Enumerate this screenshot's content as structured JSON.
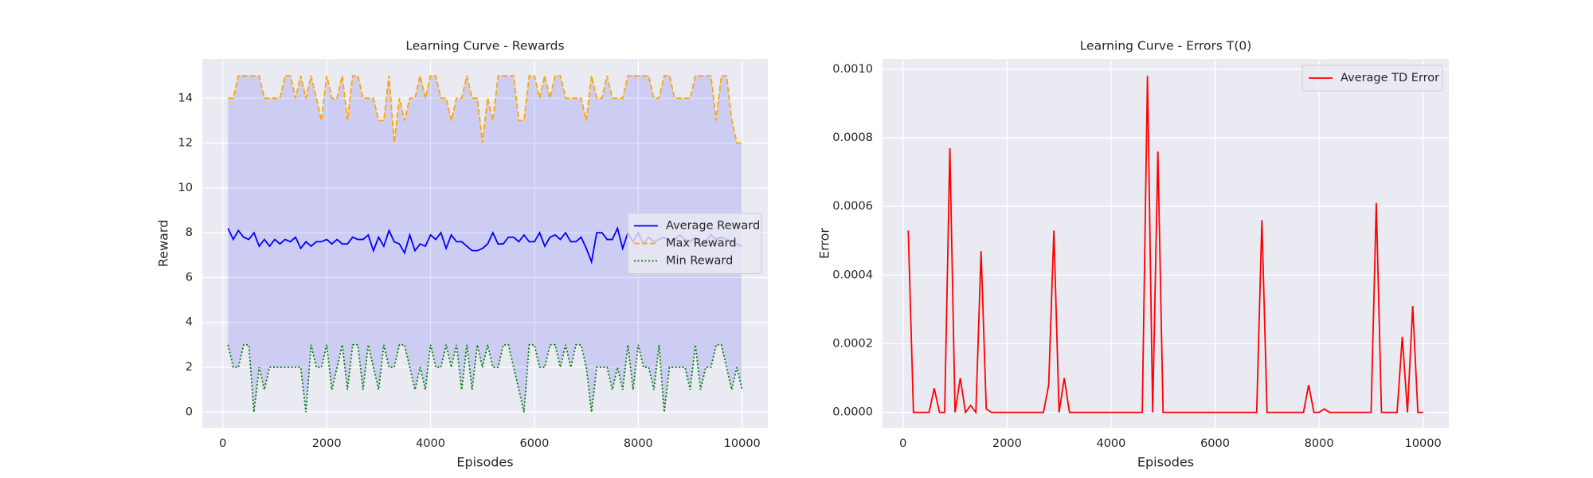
{
  "chart_data": [
    {
      "type": "line",
      "title": "Learning Curve - Rewards",
      "xlabel": "Episodes",
      "ylabel": "Reward",
      "x": [
        100,
        200,
        300,
        400,
        500,
        600,
        700,
        800,
        900,
        1000,
        1100,
        1200,
        1300,
        1400,
        1500,
        1600,
        1700,
        1800,
        1900,
        2000,
        2100,
        2200,
        2300,
        2400,
        2500,
        2600,
        2700,
        2800,
        2900,
        3000,
        3100,
        3200,
        3300,
        3400,
        3500,
        3600,
        3700,
        3800,
        3900,
        4000,
        4100,
        4200,
        4300,
        4400,
        4500,
        4600,
        4700,
        4800,
        4900,
        5000,
        5100,
        5200,
        5300,
        5400,
        5500,
        5600,
        5700,
        5800,
        5900,
        6000,
        6100,
        6200,
        6300,
        6400,
        6500,
        6600,
        6700,
        6800,
        6900,
        7000,
        7100,
        7200,
        7300,
        7400,
        7500,
        7600,
        7700,
        7800,
        7900,
        8000,
        8100,
        8200,
        8300,
        8400,
        8500,
        8600,
        8700,
        8800,
        8900,
        9000,
        9100,
        9200,
        9300,
        9400,
        9500,
        9600,
        9700,
        9800,
        9900,
        10000
      ],
      "series": [
        {
          "name": "Average Reward",
          "color": "#0000ff",
          "linestyle": "solid",
          "values": [
            8.2,
            7.7,
            8.1,
            7.8,
            7.7,
            8,
            7.4,
            7.7,
            7.4,
            7.7,
            7.5,
            7.7,
            7.6,
            7.8,
            7.3,
            7.6,
            7.4,
            7.6,
            7.6,
            7.7,
            7.5,
            7.7,
            7.5,
            7.5,
            7.8,
            7.7,
            7.7,
            7.9,
            7.2,
            7.8,
            7.4,
            8.1,
            7.6,
            7.5,
            7.1,
            7.9,
            7.2,
            7.5,
            7.4,
            7.9,
            7.7,
            8,
            7.3,
            7.9,
            7.6,
            7.6,
            7.4,
            7.2,
            7.2,
            7.3,
            7.5,
            8,
            7.5,
            7.5,
            7.8,
            7.8,
            7.6,
            7.9,
            7.6,
            7.6,
            8,
            7.4,
            7.8,
            7.9,
            7.7,
            8,
            7.6,
            7.6,
            7.8,
            7.3,
            6.7,
            8,
            8,
            7.7,
            7.7,
            8.2,
            7.3,
            8,
            7.6,
            8,
            7.5,
            7.8,
            7.6,
            7.7,
            7.8,
            7.6,
            7.7,
            7.9,
            7.7,
            7.6,
            7.8,
            7.5,
            7.6,
            7.9,
            7.7,
            7.8,
            7.7,
            7.6,
            7.5,
            7.4
          ]
        },
        {
          "name": "Max Reward",
          "color": "#ffa500",
          "linestyle": "dashed",
          "values": [
            14,
            14,
            15,
            15,
            15,
            15,
            15,
            14,
            14,
            14,
            14,
            15,
            15,
            14,
            15,
            14,
            15,
            14,
            13,
            15,
            14,
            14,
            15,
            13,
            15,
            15,
            14,
            14,
            14,
            13,
            13,
            15,
            12,
            14,
            13,
            14,
            14,
            15,
            14,
            15,
            15,
            14,
            14,
            13,
            14,
            14,
            15,
            14,
            14,
            12,
            14,
            13,
            15,
            15,
            15,
            15,
            13,
            13,
            15,
            15,
            14,
            15,
            14,
            15,
            15,
            14,
            14,
            14,
            14,
            13,
            15,
            14,
            14,
            15,
            14,
            14,
            14,
            15,
            15,
            15,
            15,
            15,
            14,
            14,
            15,
            15,
            14,
            14,
            14,
            14,
            15,
            15,
            15,
            15,
            13,
            15,
            15,
            13,
            12,
            12
          ]
        },
        {
          "name": "Min Reward",
          "color": "#008000",
          "linestyle": "dotted",
          "values": [
            3,
            2,
            2,
            3,
            3,
            0,
            2,
            1,
            2,
            2,
            2,
            2,
            2,
            2,
            2,
            0,
            3,
            2,
            2,
            3,
            1,
            2,
            3,
            1,
            3,
            3,
            1,
            3,
            2,
            1,
            3,
            2,
            2,
            3,
            3,
            2,
            1,
            2,
            1,
            3,
            2,
            2,
            3,
            2,
            3,
            1,
            3,
            1,
            3,
            2,
            3,
            2,
            2,
            3,
            3,
            2,
            1,
            0,
            3,
            3,
            2,
            2,
            3,
            3,
            2,
            3,
            2,
            3,
            3,
            2,
            0,
            2,
            2,
            2,
            1,
            2,
            1,
            3,
            1,
            3,
            2,
            2,
            1,
            3,
            0,
            2,
            2,
            2,
            2,
            1,
            3,
            1,
            2,
            2,
            3,
            3,
            2,
            1,
            2,
            1
          ]
        }
      ],
      "fill_between": {
        "color": "#0000ff",
        "opacity": 0.12
      },
      "xlim": [
        -395,
        10495
      ],
      "ylim": [
        -0.7,
        15.75
      ],
      "xticks": [
        0,
        2000,
        4000,
        6000,
        8000,
        10000
      ],
      "yticks": [
        0,
        2,
        4,
        6,
        8,
        10,
        12,
        14
      ],
      "grid": true,
      "legend": "center right"
    },
    {
      "type": "line",
      "title": "Learning Curve - Errors T(0)",
      "xlabel": "Episodes",
      "ylabel": "Error",
      "x": [
        100,
        200,
        300,
        400,
        500,
        600,
        700,
        800,
        900,
        1000,
        1100,
        1200,
        1300,
        1400,
        1500,
        1600,
        1700,
        1800,
        1900,
        2000,
        2100,
        2200,
        2300,
        2400,
        2500,
        2600,
        2700,
        2800,
        2900,
        3000,
        3100,
        3200,
        3300,
        3400,
        3500,
        3600,
        3700,
        3800,
        3900,
        4000,
        4100,
        4200,
        4300,
        4400,
        4500,
        4600,
        4700,
        4800,
        4900,
        5000,
        5100,
        5200,
        5300,
        5400,
        5500,
        5600,
        5700,
        5800,
        5900,
        6000,
        6100,
        6200,
        6300,
        6400,
        6500,
        6600,
        6700,
        6800,
        6900,
        7000,
        7100,
        7200,
        7300,
        7400,
        7500,
        7600,
        7700,
        7800,
        7900,
        8000,
        8100,
        8200,
        8300,
        8400,
        8500,
        8600,
        8700,
        8800,
        8900,
        9000,
        9100,
        9200,
        9300,
        9400,
        9500,
        9600,
        9700,
        9800,
        9900,
        10000
      ],
      "series": [
        {
          "name": "Average TD Error",
          "color": "#ff0000",
          "linestyle": "solid",
          "values": [
            0.00053,
            0,
            0,
            0,
            0,
            7e-05,
            0,
            0,
            0.00077,
            0,
            0.0001,
            0,
            2e-05,
            0,
            0.00047,
            1e-05,
            0,
            0,
            0,
            0,
            0,
            0,
            0,
            0,
            0,
            0,
            0,
            8e-05,
            0.00053,
            0,
            0.0001,
            0,
            0,
            0,
            0,
            0,
            0,
            0,
            0,
            0,
            0,
            0,
            0,
            0,
            0,
            0,
            0.00098,
            0,
            0.00076,
            0,
            0,
            0,
            0,
            0,
            0,
            0,
            0,
            0,
            0,
            0,
            0,
            0,
            0,
            0,
            0,
            0,
            0,
            0,
            0.00056,
            0,
            0,
            0,
            0,
            0,
            0,
            0,
            0,
            8e-05,
            0,
            0,
            1e-05,
            0,
            0,
            0,
            0,
            0,
            0,
            0,
            0,
            0,
            0.00061,
            0,
            0,
            0,
            0,
            0.00022,
            0,
            0.00031,
            0,
            0
          ]
        }
      ],
      "xlim": [
        -395,
        10495
      ],
      "ylim": [
        -4.5e-05,
        0.00103
      ],
      "xticks": [
        0,
        2000,
        4000,
        6000,
        8000,
        10000
      ],
      "yticks": [
        {
          "value": 0,
          "label": "0.0000"
        },
        0.0002,
        0.0004,
        0.0006,
        0.0008,
        {
          "value": 0.001,
          "label": "0.0010"
        }
      ],
      "grid": true,
      "legend": "upper right"
    }
  ]
}
